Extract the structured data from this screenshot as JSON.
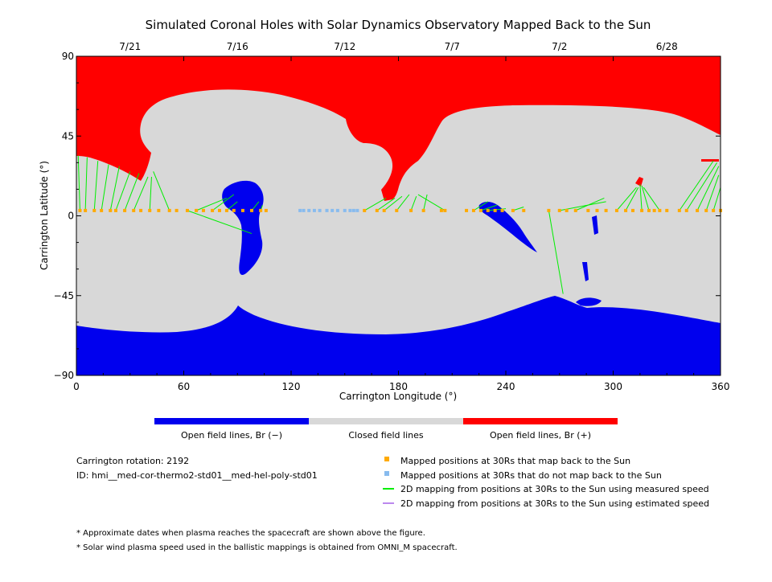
{
  "chart_data": {
    "type": "heatmap",
    "title": "Simulated Coronal Holes with Solar Dynamics Observatory Mapped Back to the Sun",
    "xlabel": "Carrington Longitude (°)",
    "ylabel": "Carrington Latitude (°)",
    "xlim": [
      0,
      360
    ],
    "ylim": [
      -90,
      90
    ],
    "x_ticks": [
      "0",
      "60",
      "120",
      "180",
      "240",
      "300",
      "360"
    ],
    "y_ticks": [
      "90",
      "45",
      "0",
      "−45",
      "−90"
    ],
    "top_axis_dates": [
      {
        "label": "7/21",
        "lon": 30
      },
      {
        "label": "7/16",
        "lon": 90
      },
      {
        "label": "7/12",
        "lon": 150
      },
      {
        "label": "7/7",
        "lon": 210
      },
      {
        "label": "7/2",
        "lon": 270
      },
      {
        "label": "6/28",
        "lon": 330
      }
    ],
    "colors": {
      "open_negative": "#0000ee",
      "closed": "#d8d8d8",
      "open_positive": "#ff0000",
      "mapped": "#ffaa00",
      "unmapped": "#88bbee",
      "measured_line": "#00ee00",
      "estimated_line": "#bb88ee"
    },
    "colorbar_labels": [
      "Open field lines, Br (−)",
      "Closed field lines",
      "Open field lines, Br (+)"
    ],
    "mapped_points_lon": [
      2,
      5,
      10,
      14,
      19,
      22,
      27,
      32,
      36,
      41,
      46,
      52,
      56,
      62,
      67,
      71,
      76,
      80,
      84,
      88,
      93,
      98,
      103,
      106,
      161,
      168,
      172,
      179,
      187,
      194,
      204,
      206,
      218,
      222,
      226,
      230,
      234,
      238,
      244,
      250,
      264,
      270,
      274,
      279,
      286,
      291,
      296,
      302,
      307,
      311,
      316,
      320,
      323,
      326,
      330,
      337,
      341,
      347,
      352,
      356,
      360
    ],
    "unmapped_points_lon": [
      125,
      127,
      130,
      133,
      136,
      140,
      143,
      146,
      150,
      153,
      155,
      157
    ],
    "mapping_lines": [
      {
        "from": [
          2,
          3
        ],
        "to": [
          1,
          34
        ]
      },
      {
        "from": [
          5,
          3
        ],
        "to": [
          6,
          33
        ]
      },
      {
        "from": [
          10,
          3
        ],
        "to": [
          12,
          31
        ]
      },
      {
        "from": [
          14,
          3
        ],
        "to": [
          18,
          29
        ]
      },
      {
        "from": [
          19,
          3
        ],
        "to": [
          24,
          28
        ]
      },
      {
        "from": [
          22,
          3
        ],
        "to": [
          30,
          25
        ]
      },
      {
        "from": [
          27,
          3
        ],
        "to": [
          35,
          24
        ]
      },
      {
        "from": [
          32,
          3
        ],
        "to": [
          40,
          22
        ]
      },
      {
        "from": [
          41,
          3
        ],
        "to": [
          42,
          22
        ]
      },
      {
        "from": [
          52,
          3
        ],
        "to": [
          43,
          25
        ]
      },
      {
        "from": [
          62,
          3
        ],
        "to": [
          98,
          -10
        ]
      },
      {
        "from": [
          67,
          3
        ],
        "to": [
          84,
          10
        ]
      },
      {
        "from": [
          76,
          3
        ],
        "to": [
          88,
          12
        ]
      },
      {
        "from": [
          84,
          3
        ],
        "to": [
          90,
          8
        ]
      },
      {
        "from": [
          98,
          3
        ],
        "to": [
          102,
          8
        ]
      },
      {
        "from": [
          103,
          3
        ],
        "to": [
          104,
          6
        ]
      },
      {
        "from": [
          161,
          3
        ],
        "to": [
          173,
          10
        ]
      },
      {
        "from": [
          168,
          3
        ],
        "to": [
          178,
          10
        ]
      },
      {
        "from": [
          172,
          3
        ],
        "to": [
          182,
          11
        ]
      },
      {
        "from": [
          179,
          3
        ],
        "to": [
          186,
          12
        ]
      },
      {
        "from": [
          187,
          3
        ],
        "to": [
          190,
          11
        ]
      },
      {
        "from": [
          194,
          3
        ],
        "to": [
          196,
          12
        ]
      },
      {
        "from": [
          206,
          3
        ],
        "to": [
          191,
          12
        ]
      },
      {
        "from": [
          222,
          3
        ],
        "to": [
          230,
          8
        ]
      },
      {
        "from": [
          226,
          3
        ],
        "to": [
          235,
          6
        ]
      },
      {
        "from": [
          230,
          3
        ],
        "to": [
          240,
          4
        ]
      },
      {
        "from": [
          244,
          3
        ],
        "to": [
          250,
          5
        ]
      },
      {
        "from": [
          264,
          3
        ],
        "to": [
          272,
          -44
        ]
      },
      {
        "from": [
          270,
          3
        ],
        "to": [
          296,
          8
        ]
      },
      {
        "from": [
          279,
          3
        ],
        "to": [
          295,
          10
        ]
      },
      {
        "from": [
          302,
          3
        ],
        "to": [
          313,
          16
        ]
      },
      {
        "from": [
          307,
          3
        ],
        "to": [
          314,
          16
        ]
      },
      {
        "from": [
          316,
          3
        ],
        "to": [
          315,
          18
        ]
      },
      {
        "from": [
          320,
          3
        ],
        "to": [
          316,
          17
        ]
      },
      {
        "from": [
          326,
          3
        ],
        "to": [
          317,
          16
        ]
      },
      {
        "from": [
          337,
          3
        ],
        "to": [
          356,
          31
        ]
      },
      {
        "from": [
          341,
          3
        ],
        "to": [
          358,
          30
        ]
      },
      {
        "from": [
          347,
          3
        ],
        "to": [
          359,
          28
        ]
      },
      {
        "from": [
          352,
          3
        ],
        "to": [
          359,
          23
        ]
      },
      {
        "from": [
          356,
          3
        ],
        "to": [
          360,
          16
        ]
      }
    ]
  },
  "info": {
    "rotation": "Carrington rotation: 2192",
    "id": "ID: hmi__med-cor-thermo2-std01__med-hel-poly-std01"
  },
  "legend": {
    "mapped": "Mapped positions at 30Rs that map back to the Sun",
    "unmapped": "Mapped positions at 30Rs that do not map back to the Sun",
    "measured": "2D mapping from positions at 30Rs to the Sun using measured speed",
    "estimated": "2D mapping from positions at 30Rs to the Sun using estimated speed"
  },
  "notes": [
    "* Approximate dates when plasma reaches the spacecraft are shown above the figure.",
    "* Solar wind plasma speed used in the ballistic mappings is obtained from OMNI_M spacecraft."
  ]
}
